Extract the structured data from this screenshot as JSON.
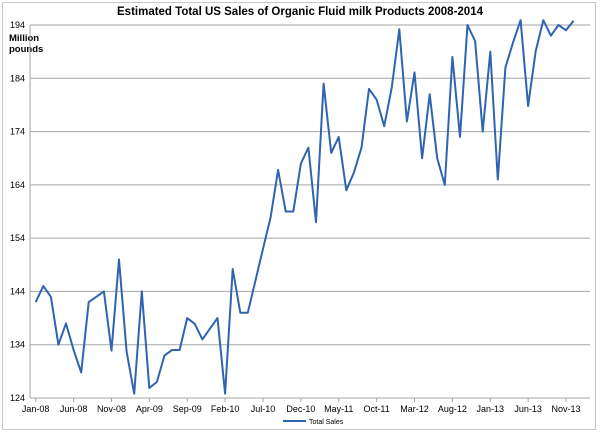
{
  "chart_data": {
    "type": "line",
    "title": "Estimated Total US Sales of Organic Fluid milk Products 2008-2014",
    "ylabel": "Million pounds",
    "xlabel": "",
    "ylim": [
      124,
      194
    ],
    "yticks": [
      124,
      134,
      144,
      154,
      164,
      174,
      184,
      194
    ],
    "xtick_labels": [
      "Jan-08",
      "Jun-08",
      "Nov-08",
      "Apr-09",
      "Sep-09",
      "Feb-10",
      "Jul-10",
      "Dec-10",
      "May-11",
      "Oct-11",
      "Mar-12",
      "Aug-12",
      "Jan-13",
      "Jun-13",
      "Nov-13"
    ],
    "x_start": "Jan-08",
    "x_step": "month",
    "grid": true,
    "legend_position": "bottom",
    "series": [
      {
        "name": "Total Sales",
        "color": "#2e64b0",
        "values": [
          142,
          145,
          143,
          134,
          138,
          133,
          128.8,
          142,
          143,
          144,
          132.9,
          150,
          132.7,
          124.8,
          144,
          125.9,
          127,
          132,
          133,
          133,
          139,
          137.9,
          135,
          137,
          139,
          124.8,
          148.2,
          140,
          140,
          146,
          152,
          157.9,
          166.8,
          159,
          159,
          168,
          171,
          157,
          183,
          170,
          173,
          163,
          166.3,
          171,
          182,
          180,
          175,
          182.3,
          193.2,
          175.9,
          185.1,
          169,
          181,
          169,
          164,
          188,
          173,
          194,
          191,
          174,
          189,
          165,
          186,
          190.7,
          194.9,
          178.8,
          189.1,
          194.9,
          192,
          194,
          193,
          194.8
        ]
      }
    ]
  }
}
